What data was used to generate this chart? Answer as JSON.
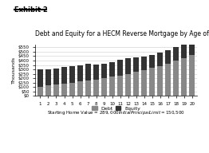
{
  "title": "Debt and Equity for a HECM Reverse Mortgage by Age of Loan in Years",
  "exhibit": "Exhibit 2",
  "xlabel": "Starting Home Value = $289,000    Initial Principal Limit = $150,500",
  "ylabel": "Thousands",
  "years": [
    1,
    2,
    3,
    4,
    5,
    6,
    7,
    8,
    9,
    10,
    11,
    12,
    13,
    14,
    15,
    16,
    17,
    18,
    19,
    20
  ],
  "debt": [
    100,
    118,
    128,
    138,
    148,
    160,
    172,
    185,
    200,
    215,
    232,
    250,
    270,
    292,
    315,
    340,
    367,
    396,
    428,
    462
  ],
  "equity": [
    200,
    185,
    185,
    185,
    187,
    188,
    190,
    172,
    165,
    170,
    175,
    178,
    168,
    155,
    150,
    148,
    148,
    158,
    158,
    158
  ],
  "debt_color": "#888888",
  "equity_color": "#333333",
  "bg_color": "#ffffff",
  "yticks": [
    0,
    50,
    100,
    150,
    200,
    250,
    300,
    350,
    400,
    450,
    500,
    550
  ],
  "ytick_labels": [
    "$0",
    "$50",
    "$100",
    "$150",
    "$200",
    "$250",
    "$300",
    "$350",
    "$400",
    "$450",
    "$500",
    "$550"
  ],
  "title_fontsize": 5.5,
  "exhibit_fontsize": 6,
  "axis_fontsize": 4.5,
  "tick_fontsize": 4,
  "legend_fontsize": 4.5
}
